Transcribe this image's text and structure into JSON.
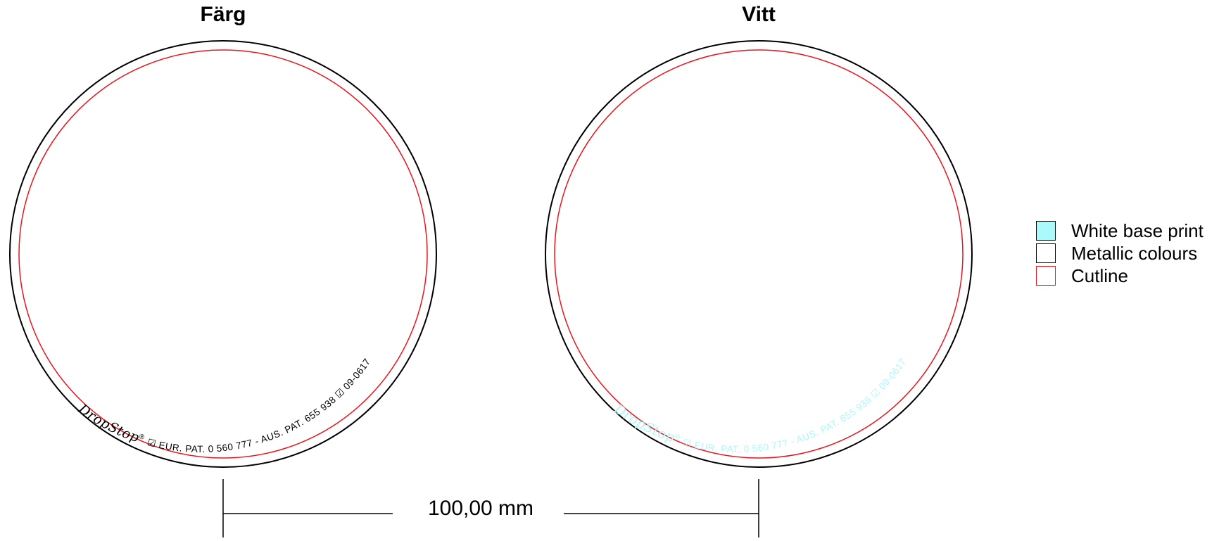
{
  "panels": [
    {
      "title": "Färg",
      "brand": "DropStop",
      "brand_mark": "®",
      "patent_text": "☑ EUR. PAT. 0 560 777  - AUS. PAT. 655 938 ☑ 09-0617",
      "print_color": "#000000"
    },
    {
      "title": "Vitt",
      "brand": "DropStop",
      "brand_mark": "®",
      "patent_text": "☑ EUR. PAT. 0 560 777  - AUS. PAT. 655 938 ☑ 09-0617",
      "print_color": "#aaf9fb"
    }
  ],
  "dimension": {
    "label": "100,00 mm"
  },
  "legend": [
    {
      "label": "White base print",
      "fill": "#aaf9fb",
      "stroke": "#000000"
    },
    {
      "label": "Metallic colours",
      "fill": "#ffffff",
      "stroke": "#000000"
    },
    {
      "label": "Cutline",
      "fill": "#ffffff",
      "stroke": "#e8141e"
    }
  ],
  "colors": {
    "outline": "#000000",
    "cutline": "#e8141e",
    "white_base": "#aaf9fb"
  }
}
